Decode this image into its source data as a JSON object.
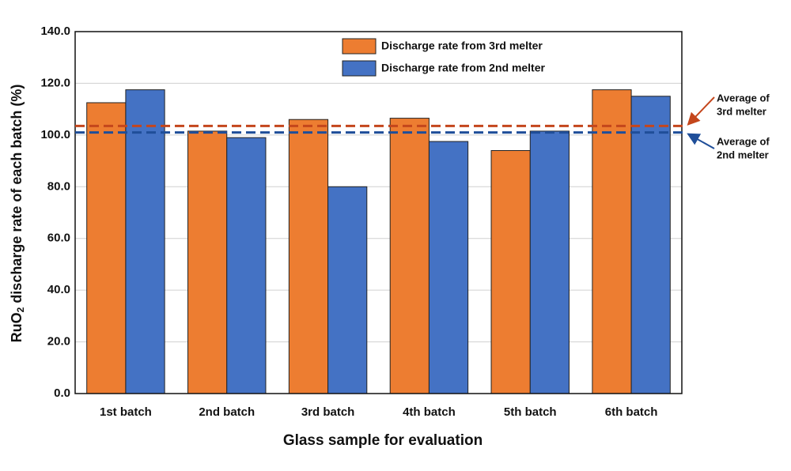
{
  "chart_data": {
    "type": "bar",
    "y_label": {
      "text": "RuO",
      "sub": "2",
      "rest": " discharge rate of each batch (%)"
    },
    "x_label": "Glass sample for evaluation",
    "categories": [
      "1st batch",
      "2nd batch",
      "3rd batch",
      "4th batch",
      "5th batch",
      "6th batch"
    ],
    "series": [
      {
        "name": "Discharge rate from 3rd melter",
        "color": "#ed7d31",
        "values": [
          112.5,
          101.5,
          106,
          106.5,
          94,
          117.5
        ]
      },
      {
        "name": "Discharge rate from 2nd melter",
        "color": "#4472c4",
        "values": [
          117.5,
          99,
          80,
          97.5,
          101.5,
          115
        ]
      }
    ],
    "averages": [
      {
        "value": 103.5,
        "color": "#c4461c",
        "label": [
          "Average of",
          "3rd melter"
        ]
      },
      {
        "value": 101,
        "color": "#1f4e99",
        "label": [
          "Average of",
          "2nd melter"
        ]
      }
    ],
    "ylim": [
      0,
      140
    ],
    "yticks": [
      {
        "value": 0,
        "label": "0.0"
      },
      {
        "value": 20,
        "label": "20.0"
      },
      {
        "value": 40,
        "label": "40.0"
      },
      {
        "value": 60,
        "label": "60.0"
      },
      {
        "value": 80,
        "label": "80.0"
      },
      {
        "value": 100,
        "label": "100.0"
      },
      {
        "value": 120,
        "label": "120.0"
      },
      {
        "value": 140,
        "label": "140.0"
      }
    ],
    "grid": true
  }
}
